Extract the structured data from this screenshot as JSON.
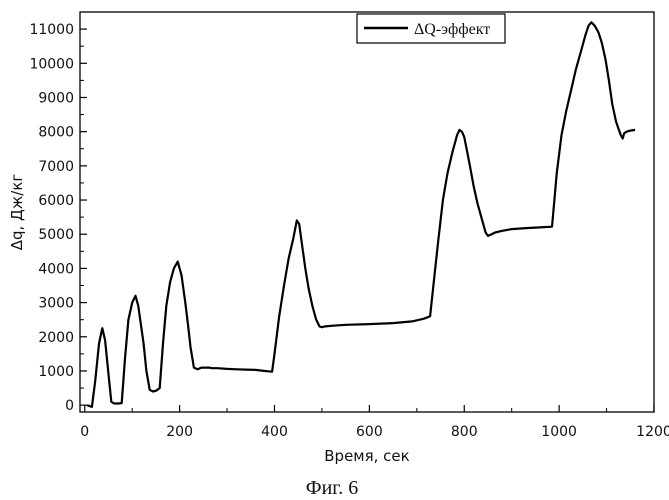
{
  "caption": "Фиг. 6",
  "chart_data": {
    "type": "line",
    "xlabel": "Время, сек",
    "ylabel": "Δq, Дж/кг",
    "xlim": [
      -10,
      1200
    ],
    "ylim": [
      -200,
      11500
    ],
    "xticks": [
      0,
      200,
      400,
      600,
      800,
      1000,
      1200
    ],
    "yticks": [
      0,
      1000,
      2000,
      3000,
      4000,
      5000,
      6000,
      7000,
      8000,
      9000,
      10000,
      11000
    ],
    "grid": false,
    "legend_position": "top-right",
    "series": [
      {
        "name": "ΔQ-эффект",
        "color": "#000000",
        "x": [
          5,
          15,
          22,
          30,
          37,
          43,
          50,
          56,
          62,
          70,
          78,
          85,
          92,
          100,
          107,
          113,
          118,
          124,
          130,
          137,
          144,
          150,
          158,
          165,
          172,
          180,
          188,
          196,
          204,
          212,
          218,
          223,
          230,
          238,
          246,
          252,
          258,
          262,
          268,
          280,
          300,
          320,
          340,
          360,
          380,
          395,
          400,
          410,
          420,
          430,
          440,
          447,
          452,
          458,
          465,
          472,
          480,
          488,
          495,
          500,
          505,
          520,
          550,
          600,
          650,
          690,
          715,
          728,
          735,
          745,
          755,
          765,
          775,
          785,
          790,
          795,
          800,
          805,
          812,
          820,
          828,
          836,
          845,
          850,
          855,
          865,
          880,
          900,
          930,
          960,
          985,
          990,
          995,
          1005,
          1015,
          1025,
          1035,
          1045,
          1055,
          1062,
          1068,
          1075,
          1083,
          1090,
          1098,
          1105,
          1112,
          1120,
          1126,
          1130,
          1134,
          1137,
          1142,
          1150,
          1160
        ],
        "y": [
          0,
          -50,
          700,
          1800,
          2250,
          1900,
          900,
          100,
          50,
          50,
          60,
          1400,
          2500,
          3000,
          3200,
          2900,
          2400,
          1800,
          1000,
          450,
          400,
          420,
          500,
          1800,
          2900,
          3600,
          4000,
          4200,
          3800,
          3000,
          2300,
          1700,
          1100,
          1050,
          1100,
          1100,
          1100,
          1100,
          1080,
          1080,
          1060,
          1050,
          1040,
          1030,
          1000,
          980,
          1500,
          2600,
          3500,
          4300,
          4900,
          5400,
          5300,
          4700,
          4000,
          3400,
          2900,
          2500,
          2300,
          2280,
          2300,
          2320,
          2350,
          2370,
          2400,
          2450,
          2530,
          2600,
          3500,
          4800,
          6000,
          6800,
          7400,
          7900,
          8050,
          8000,
          7850,
          7500,
          7000,
          6400,
          5900,
          5500,
          5050,
          4950,
          4980,
          5050,
          5100,
          5150,
          5180,
          5200,
          5220,
          6000,
          6800,
          7900,
          8600,
          9200,
          9800,
          10300,
          10800,
          11100,
          11200,
          11100,
          10900,
          10600,
          10100,
          9500,
          8800,
          8300,
          8050,
          7900,
          7800,
          7950,
          8000,
          8030,
          8050
        ]
      }
    ]
  }
}
